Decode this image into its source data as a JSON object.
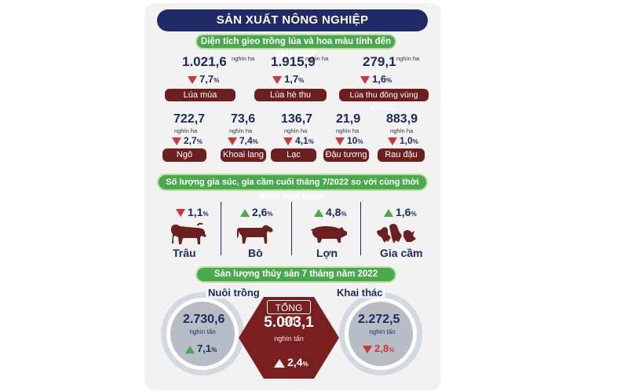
{
  "title": "SẢN XUẤT NÔNG NGHIỆP",
  "section1": {
    "header": "Diện tích gieo trồng lúa và hoa màu tính đến 15/7/2022",
    "rice": [
      {
        "value": "1.021,6",
        "unit": "nghìn ha",
        "change": "7,7",
        "direction": "down",
        "label": "Lúa mùa"
      },
      {
        "value": "1.915,9",
        "unit": "nghìn ha",
        "change": "1,7",
        "direction": "down",
        "label": "Lúa hè thu"
      },
      {
        "value": "279,1",
        "unit": "nghìn ha",
        "change": "1,6",
        "direction": "down",
        "label": "Lúa thu đông vùng ĐBSCL"
      }
    ],
    "crops": [
      {
        "value": "722,7",
        "unit": "nghìn ha",
        "change": "2,7",
        "direction": "down",
        "label": "Ngô"
      },
      {
        "value": "73,6",
        "unit": "nghìn ha",
        "change": "7,4",
        "direction": "down",
        "label": "Khoai lang"
      },
      {
        "value": "136,7",
        "unit": "nghìn ha",
        "change": "4,1",
        "direction": "down",
        "label": "Lạc"
      },
      {
        "value": "21,9",
        "unit": "nghìn ha",
        "change": "10",
        "direction": "down",
        "label": "Đậu tương"
      },
      {
        "value": "883,9",
        "unit": "nghìn ha",
        "change": "1,0",
        "direction": "down",
        "label": "Rau đậu"
      }
    ],
    "percent_symbol": "%"
  },
  "section2": {
    "header": "Số lượng gia súc, gia cầm cuối tháng 7/2022 so với cùng thời điểm năm trước",
    "livestock": [
      {
        "change": "1,1",
        "direction": "down",
        "label": "Trâu",
        "icon": "buffalo-icon"
      },
      {
        "change": "2,6",
        "direction": "up",
        "label": "Bò",
        "icon": "cow-icon"
      },
      {
        "change": "4,8",
        "direction": "up",
        "label": "Lợn",
        "icon": "pig-icon"
      },
      {
        "change": "1,6",
        "direction": "up",
        "label": "Gia cầm",
        "icon": "poultry-icon"
      }
    ]
  },
  "section3": {
    "header": "Sản lượng thủy sản 7 tháng năm 2022",
    "farming": {
      "label": "Nuôi trồng",
      "value": "2.730,6",
      "unit": "nghìn tấn",
      "change": "7,1",
      "direction": "up"
    },
    "total": {
      "label": "TỔNG SỐ",
      "value": "5.003,1",
      "unit": "nghìn tấn",
      "change": "2,4",
      "direction": "up"
    },
    "catch": {
      "label": "Khai thác",
      "value": "2.272,5",
      "unit": "nghìn tấn",
      "change": "2,8",
      "direction": "down"
    }
  },
  "colors": {
    "navy": "#1f2a66",
    "green": "#4aa84d",
    "maroon": "#6d1f1f",
    "red": "#d6303b"
  }
}
